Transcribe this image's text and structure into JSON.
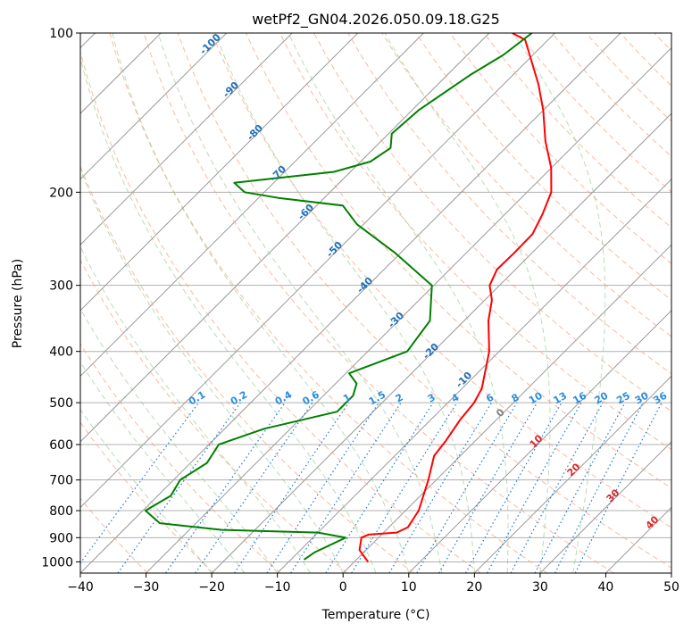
{
  "chart_data": {
    "type": "skew-t",
    "title": "wetPf2_GN04.2026.050.09.18.G25",
    "xlabel": "Temperature (°C)",
    "ylabel": "Pressure (hPa)",
    "xlim": [
      -40,
      50
    ],
    "ylim": [
      1050,
      100
    ],
    "x_ticks": [
      "−40",
      "−30",
      "−20",
      "−10",
      "0",
      "10",
      "20",
      "30",
      "40",
      "50"
    ],
    "x_tick_values": [
      -40,
      -30,
      -20,
      -10,
      0,
      10,
      20,
      30,
      40,
      50
    ],
    "y_ticks": [
      "100",
      "200",
      "300",
      "400",
      "500",
      "600",
      "700",
      "800",
      "900",
      "1000"
    ],
    "y_tick_values": [
      100,
      200,
      300,
      400,
      500,
      600,
      700,
      800,
      900,
      1000
    ],
    "series": [
      {
        "name": "temperature",
        "color": "#ff0000",
        "points": [
          [
            1000,
            2.1
          ],
          [
            950,
            -1.0
          ],
          [
            900,
            -2.6
          ],
          [
            888,
            -2.0
          ],
          [
            880,
            2.0
          ],
          [
            860,
            2.9
          ],
          [
            800,
            2.0
          ],
          [
            700,
            -1.2
          ],
          [
            630,
            -4.0
          ],
          [
            590,
            -4.5
          ],
          [
            540,
            -5.5
          ],
          [
            500,
            -6.0
          ],
          [
            470,
            -7.0
          ],
          [
            400,
            -11.5
          ],
          [
            350,
            -16.3
          ],
          [
            320,
            -18.9
          ],
          [
            300,
            -21.5
          ],
          [
            280,
            -22.8
          ],
          [
            260,
            -22.7
          ],
          [
            240,
            -22.8
          ],
          [
            220,
            -24.3
          ],
          [
            200,
            -26.3
          ],
          [
            180,
            -30.0
          ],
          [
            160,
            -35.0
          ],
          [
            140,
            -40.0
          ],
          [
            125,
            -44.7
          ],
          [
            110,
            -50.5
          ],
          [
            103,
            -53.5
          ],
          [
            100,
            -56.5
          ]
        ]
      },
      {
        "name": "dewpoint",
        "color": "#008000",
        "points": [
          [
            990,
            -8.0
          ],
          [
            960,
            -7.5
          ],
          [
            900,
            -5.0
          ],
          [
            880,
            -10.0
          ],
          [
            870,
            -25.0
          ],
          [
            845,
            -35.5
          ],
          [
            800,
            -39.6
          ],
          [
            750,
            -38.0
          ],
          [
            700,
            -39.0
          ],
          [
            650,
            -37.5
          ],
          [
            600,
            -38.5
          ],
          [
            560,
            -34.0
          ],
          [
            520,
            -25.5
          ],
          [
            485,
            -25.5
          ],
          [
            460,
            -26.8
          ],
          [
            440,
            -29.5
          ],
          [
            400,
            -24.0
          ],
          [
            350,
            -25.2
          ],
          [
            300,
            -30.3
          ],
          [
            260,
            -41.0
          ],
          [
            230,
            -51.0
          ],
          [
            212,
            -56.0
          ],
          [
            205,
            -67.0
          ],
          [
            200,
            -73.0
          ],
          [
            192,
            -76.0
          ],
          [
            183,
            -62.5
          ],
          [
            175,
            -58.5
          ],
          [
            165,
            -57.5
          ],
          [
            155,
            -59.5
          ],
          [
            140,
            -59.0
          ],
          [
            120,
            -56.5
          ],
          [
            110,
            -54.5
          ],
          [
            100,
            -53.5
          ]
        ]
      }
    ],
    "background_lines": {
      "dry_adiabats_color": "#f4a582",
      "moist_adiabats_color": "#7fbf7b",
      "mixing_ratio_color": "#1f78d4",
      "isotherm_color": "#999999",
      "theta_labels": [
        "-100",
        "-90",
        "-80",
        "-70",
        "-60",
        "-50",
        "-40",
        "-30",
        "-20",
        "-10",
        "0",
        "10",
        "20",
        "30",
        "40"
      ],
      "mixing_ratio_labels": [
        "0.1",
        "0.2",
        "0.4",
        "0.6",
        "1",
        "1.5",
        "2",
        "3",
        "4",
        "6",
        "8",
        "10",
        "13",
        "16",
        "20",
        "25",
        "30",
        "36"
      ]
    }
  }
}
